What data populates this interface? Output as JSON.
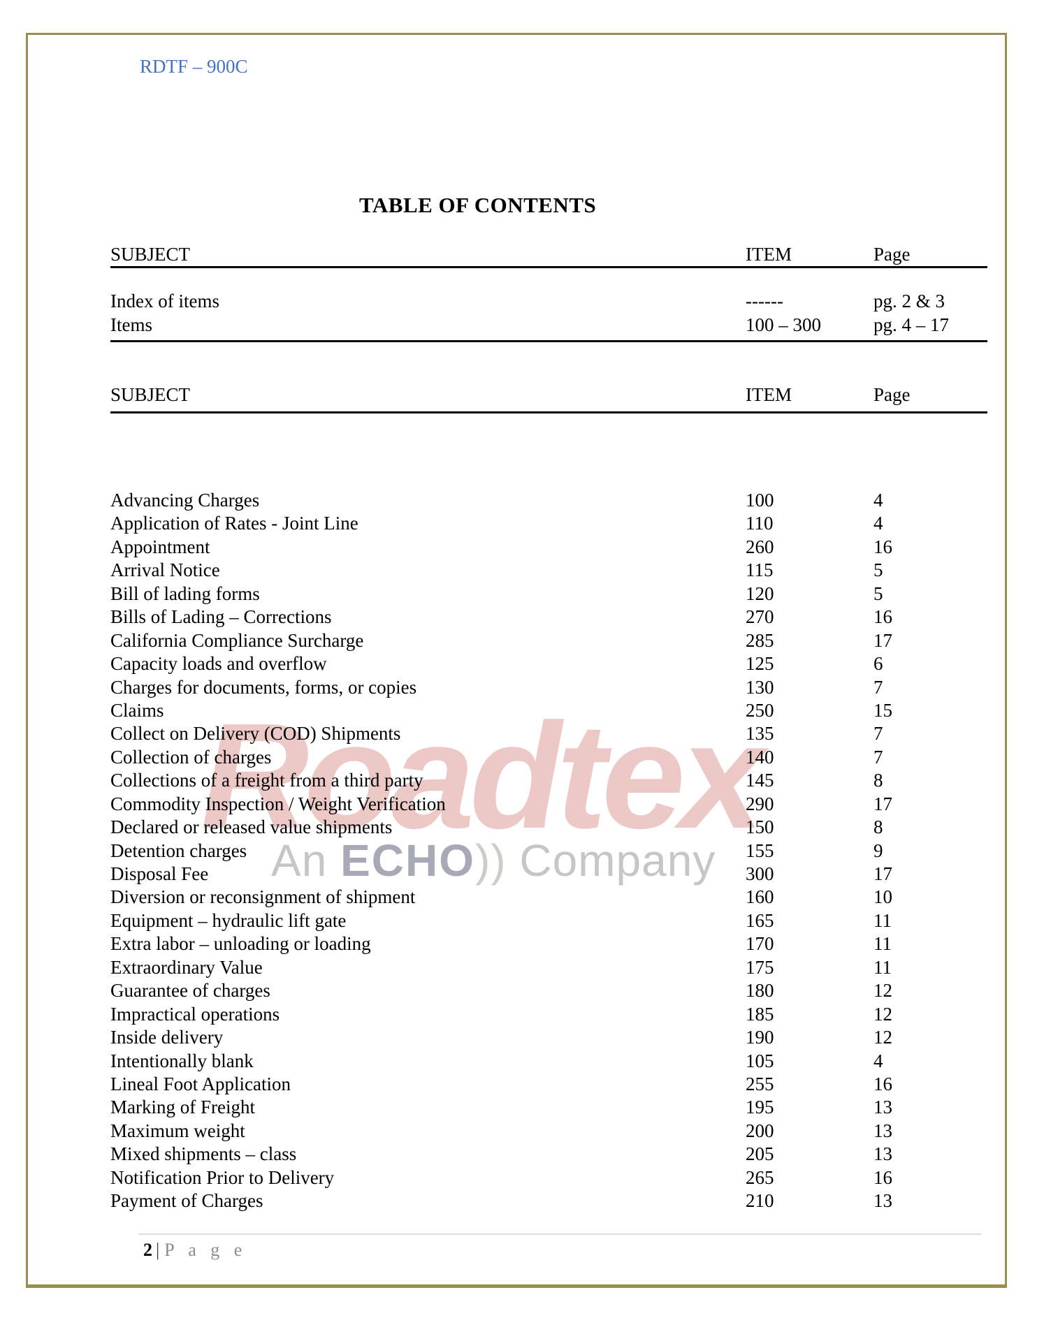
{
  "header": {
    "doc_code": "RDTF – 900C",
    "title": "TABLE OF CONTENTS"
  },
  "index_table": {
    "headers": {
      "subject": "SUBJECT",
      "item": "ITEM",
      "page": "Page"
    },
    "rows": [
      {
        "subject": "Index of items",
        "item": "------",
        "page": "pg. 2 & 3"
      },
      {
        "subject": "Items",
        "item": "100 – 300",
        "page": "pg. 4 – 17"
      }
    ]
  },
  "items_table": {
    "headers": {
      "subject": "SUBJECT",
      "item": "ITEM",
      "page": "Page"
    },
    "rows": [
      {
        "subject": "Advancing Charges",
        "item": "100",
        "page": "4"
      },
      {
        "subject": "Application of Rates  -  Joint Line",
        "item": "110",
        "page": "4"
      },
      {
        "subject": "Appointment",
        "item": "260",
        "page": "16"
      },
      {
        "subject": "Arrival Notice",
        "item": "115",
        "page": "5"
      },
      {
        "subject": "Bill of lading forms",
        "item": "120",
        "page": "5"
      },
      {
        "subject": "Bills of Lading – Corrections",
        "item": "270",
        "page": "16"
      },
      {
        "subject": "California Compliance Surcharge",
        "item": "285",
        "page": "17"
      },
      {
        "subject": "Capacity loads and overflow",
        "item": "125",
        "page": "6"
      },
      {
        "subject": "Charges for documents, forms, or copies",
        "item": "130",
        "page": "7"
      },
      {
        "subject": "Claims",
        "item": "250",
        "page": "15"
      },
      {
        "subject": "Collect on Delivery (COD) Shipments",
        "item": "135",
        "page": "7"
      },
      {
        "subject": "Collection of charges",
        "item": "140",
        "page": "7"
      },
      {
        "subject": "Collections of a freight from a third party",
        "item": "145",
        "page": "8"
      },
      {
        "subject": "Commodity Inspection / Weight Verification",
        "item": "290",
        "page": "17"
      },
      {
        "subject": "Declared or released value shipments",
        "item": "150",
        "page": "8"
      },
      {
        "subject": "Detention charges",
        "item": "155",
        "page": "9"
      },
      {
        "subject": "Disposal Fee",
        "item": "300",
        "page": "17"
      },
      {
        "subject": "Diversion or reconsignment of shipment",
        "item": "160",
        "page": "10"
      },
      {
        "subject": "Equipment – hydraulic lift gate",
        "item": "165",
        "page": "11"
      },
      {
        "subject": "Extra labor – unloading or loading",
        "item": "170",
        "page": "11"
      },
      {
        "subject": "Extraordinary Value",
        "item": "175",
        "page": "11"
      },
      {
        "subject": "Guarantee of charges",
        "item": "180",
        "page": "12"
      },
      {
        "subject": "Impractical operations",
        "item": "185",
        "page": "12"
      },
      {
        "subject": "Inside delivery",
        "item": "190",
        "page": "12"
      },
      {
        "subject": "Intentionally blank",
        "item": "105",
        "page": "4"
      },
      {
        "subject": "Lineal Foot Application",
        "item": "255",
        "page": "16"
      },
      {
        "subject": "Marking of Freight",
        "item": "195",
        "page": "13"
      },
      {
        "subject": "Maximum weight",
        "item": "200",
        "page": "13"
      },
      {
        "subject": "Mixed shipments – class",
        "item": "205",
        "page": "13"
      },
      {
        "subject": "Notification Prior to Delivery",
        "item": "265",
        "page": "16"
      },
      {
        "subject": "Payment of Charges",
        "item": "210",
        "page": "13"
      }
    ]
  },
  "watermark": {
    "brand": "Roadtex",
    "line2_prefix": "An",
    "line2_brand": "ECHO",
    "line2_waves": "))",
    "line2_suffix": "Company"
  },
  "footer": {
    "page_number": "2",
    "separator": "|",
    "page_word": "P a g e"
  },
  "colors": {
    "doc_code_blue": "#4472C4",
    "frame_border": "#9C8E51",
    "watermark_pink": "#E7B8B5",
    "watermark_gray": "#C5C6CA",
    "watermark_echo": "#A8A9B7",
    "footer_gray": "#8C8C8C",
    "rule_black": "#000000"
  }
}
